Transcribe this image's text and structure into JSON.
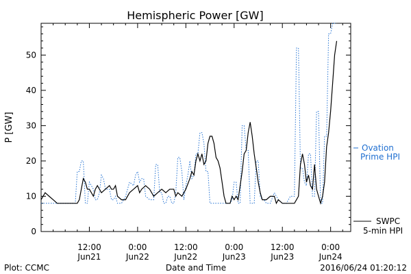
{
  "chart_data": {
    "type": "line",
    "title": "Hemispheric Power [GW]",
    "xlabel": "Date and Time",
    "ylabel": "P [GW]",
    "ylim": [
      0,
      59
    ],
    "xlim": [
      0,
      77
    ],
    "x_unit": "hours since 2016-06-21 00:00",
    "yticks": [
      0,
      10,
      20,
      30,
      40,
      50
    ],
    "xticks": [
      {
        "x": 12,
        "line1": "12:00",
        "line2": "Jun21"
      },
      {
        "x": 24,
        "line1": "0:00",
        "line2": "Jun22"
      },
      {
        "x": 36,
        "line1": "12:00",
        "line2": "Jun22"
      },
      {
        "x": 48,
        "line1": "0:00",
        "line2": "Jun23"
      },
      {
        "x": 60,
        "line1": "12:00",
        "line2": "Jun23"
      },
      {
        "x": 72,
        "line1": "0:00",
        "line2": "Jun24"
      }
    ],
    "grid": false,
    "series": [
      {
        "name": "SWPC 5-min HPI",
        "color": "#000000",
        "style": "solid",
        "points": [
          [
            0,
            9
          ],
          [
            0.5,
            10
          ],
          [
            1,
            11
          ],
          [
            2,
            10
          ],
          [
            3,
            9
          ],
          [
            4,
            8
          ],
          [
            6,
            8
          ],
          [
            8,
            8
          ],
          [
            9,
            8
          ],
          [
            9.5,
            9
          ],
          [
            10,
            12
          ],
          [
            10.5,
            15
          ],
          [
            11,
            14
          ],
          [
            11.5,
            12
          ],
          [
            12,
            12
          ],
          [
            12.5,
            11
          ],
          [
            13,
            10
          ],
          [
            13.5,
            12
          ],
          [
            14,
            13
          ],
          [
            15,
            11
          ],
          [
            16,
            12
          ],
          [
            17,
            13
          ],
          [
            17.5,
            12
          ],
          [
            18,
            12
          ],
          [
            18.5,
            13
          ],
          [
            19,
            10
          ],
          [
            20,
            9
          ],
          [
            21,
            9
          ],
          [
            22,
            11
          ],
          [
            23,
            12
          ],
          [
            24,
            13
          ],
          [
            24.5,
            11
          ],
          [
            25,
            12
          ],
          [
            26,
            13
          ],
          [
            27,
            12
          ],
          [
            28,
            10
          ],
          [
            29,
            11
          ],
          [
            30,
            12
          ],
          [
            31,
            11
          ],
          [
            32,
            12
          ],
          [
            33,
            12
          ],
          [
            33.5,
            10
          ],
          [
            34,
            11
          ],
          [
            35,
            10
          ],
          [
            36,
            12
          ],
          [
            37,
            15
          ],
          [
            37.5,
            17
          ],
          [
            38,
            16
          ],
          [
            38.5,
            20
          ],
          [
            39,
            22
          ],
          [
            39.5,
            20
          ],
          [
            40,
            22
          ],
          [
            40.5,
            19
          ],
          [
            41,
            20
          ],
          [
            41.5,
            25
          ],
          [
            42,
            27
          ],
          [
            42.5,
            27
          ],
          [
            43,
            25
          ],
          [
            43.5,
            21
          ],
          [
            44,
            20
          ],
          [
            44.5,
            18
          ],
          [
            45,
            14
          ],
          [
            45.5,
            10
          ],
          [
            46,
            8
          ],
          [
            47,
            8
          ],
          [
            47.5,
            10
          ],
          [
            48,
            9
          ],
          [
            48.5,
            10
          ],
          [
            49,
            9
          ],
          [
            49.5,
            13
          ],
          [
            50,
            17
          ],
          [
            50.5,
            22
          ],
          [
            51,
            23
          ],
          [
            51.5,
            28
          ],
          [
            52,
            31
          ],
          [
            52.5,
            27
          ],
          [
            53,
            22
          ],
          [
            53.5,
            18
          ],
          [
            54,
            14
          ],
          [
            54.5,
            11
          ],
          [
            55,
            9
          ],
          [
            56,
            9
          ],
          [
            57,
            10
          ],
          [
            58,
            10
          ],
          [
            58.5,
            8
          ],
          [
            59,
            9
          ],
          [
            60,
            8
          ],
          [
            61,
            8
          ],
          [
            62,
            8
          ],
          [
            63,
            8
          ],
          [
            63.5,
            9
          ],
          [
            64,
            10
          ],
          [
            64.5,
            19
          ],
          [
            65,
            22
          ],
          [
            65.5,
            19
          ],
          [
            66,
            14
          ],
          [
            66.5,
            16
          ],
          [
            67,
            13
          ],
          [
            67.5,
            12
          ],
          [
            68,
            19
          ],
          [
            68.5,
            12
          ],
          [
            69,
            10
          ],
          [
            69.5,
            8
          ],
          [
            70,
            10
          ],
          [
            70.5,
            14
          ],
          [
            71,
            24
          ],
          [
            71.5,
            28
          ],
          [
            72,
            34
          ],
          [
            72.5,
            42
          ],
          [
            73,
            50
          ],
          [
            73.5,
            54
          ]
        ]
      },
      {
        "name": "Ovation Prime HPI",
        "color": "#1f6fd1",
        "style": "dotted",
        "points": [
          [
            0,
            8
          ],
          [
            3,
            8
          ],
          [
            5,
            8
          ],
          [
            7,
            8
          ],
          [
            8.5,
            8
          ],
          [
            9,
            17
          ],
          [
            9.5,
            17
          ],
          [
            10,
            20
          ],
          [
            10.5,
            20
          ],
          [
            11,
            8
          ],
          [
            11.5,
            8
          ],
          [
            12,
            14
          ],
          [
            13,
            12
          ],
          [
            13.5,
            9
          ],
          [
            14,
            9
          ],
          [
            14.5,
            11
          ],
          [
            15,
            16
          ],
          [
            15.5,
            15
          ],
          [
            16,
            12
          ],
          [
            17,
            12
          ],
          [
            17.5,
            9
          ],
          [
            18,
            9
          ],
          [
            18.5,
            10
          ],
          [
            19,
            8
          ],
          [
            20,
            8
          ],
          [
            21,
            10
          ],
          [
            22,
            14
          ],
          [
            23,
            13
          ],
          [
            23.5,
            16
          ],
          [
            24,
            17
          ],
          [
            24.5,
            14
          ],
          [
            25,
            15
          ],
          [
            25.5,
            15
          ],
          [
            26,
            10
          ],
          [
            27,
            9
          ],
          [
            28,
            9
          ],
          [
            28.5,
            19
          ],
          [
            29,
            19
          ],
          [
            29.5,
            11
          ],
          [
            30,
            11
          ],
          [
            30.5,
            8
          ],
          [
            31,
            8
          ],
          [
            31.5,
            10
          ],
          [
            32,
            10
          ],
          [
            32.5,
            8
          ],
          [
            33,
            8
          ],
          [
            33.5,
            11
          ],
          [
            34,
            21
          ],
          [
            34.5,
            21
          ],
          [
            35,
            17
          ],
          [
            35.5,
            9
          ],
          [
            36,
            13
          ],
          [
            36.5,
            16
          ],
          [
            37,
            20
          ],
          [
            37.5,
            15
          ],
          [
            38,
            16
          ],
          [
            38.5,
            22
          ],
          [
            39,
            22
          ],
          [
            39.5,
            28
          ],
          [
            40,
            28
          ],
          [
            40.5,
            25
          ],
          [
            41,
            17
          ],
          [
            41.5,
            17
          ],
          [
            42,
            8
          ],
          [
            43,
            8
          ],
          [
            43.5,
            8
          ],
          [
            44,
            8
          ],
          [
            45,
            8
          ],
          [
            46,
            8
          ],
          [
            47,
            8
          ],
          [
            47.5,
            9
          ],
          [
            48,
            14
          ],
          [
            48.5,
            14
          ],
          [
            49,
            8
          ],
          [
            49.5,
            8
          ],
          [
            50,
            30
          ],
          [
            50.5,
            30
          ],
          [
            51,
            23
          ],
          [
            51.5,
            23
          ],
          [
            52,
            8
          ],
          [
            53,
            8
          ],
          [
            53.5,
            20
          ],
          [
            54,
            20
          ],
          [
            54.5,
            10
          ],
          [
            55,
            9
          ],
          [
            55.5,
            9
          ],
          [
            56,
            8
          ],
          [
            57,
            8
          ],
          [
            58,
            11
          ],
          [
            58.5,
            10
          ],
          [
            59,
            9
          ],
          [
            60,
            8
          ],
          [
            61,
            8
          ],
          [
            62,
            10
          ],
          [
            63,
            10
          ],
          [
            63.5,
            52
          ],
          [
            64,
            52
          ],
          [
            64.5,
            18
          ],
          [
            65,
            18
          ],
          [
            65.5,
            14
          ],
          [
            66,
            13
          ],
          [
            66.5,
            22
          ],
          [
            67,
            22
          ],
          [
            67.5,
            10
          ],
          [
            68,
            10
          ],
          [
            68.5,
            34
          ],
          [
            69,
            34
          ],
          [
            69.5,
            8
          ],
          [
            70,
            8
          ],
          [
            70.5,
            27
          ],
          [
            71,
            27
          ],
          [
            71.5,
            56
          ],
          [
            72,
            56
          ],
          [
            72.5,
            60
          ],
          [
            73,
            60
          ],
          [
            73.5,
            59
          ]
        ]
      }
    ],
    "legend": {
      "placement": "right",
      "ovation_line1": "Ovation",
      "ovation_line2": "Prime HPI",
      "swpc_line1": "SWPC",
      "swpc_line2": "5-min HPI"
    }
  },
  "footer": {
    "left": "Plot: CCMC",
    "center": "Date and Time",
    "right": "2016/06/24 01:20:12"
  }
}
